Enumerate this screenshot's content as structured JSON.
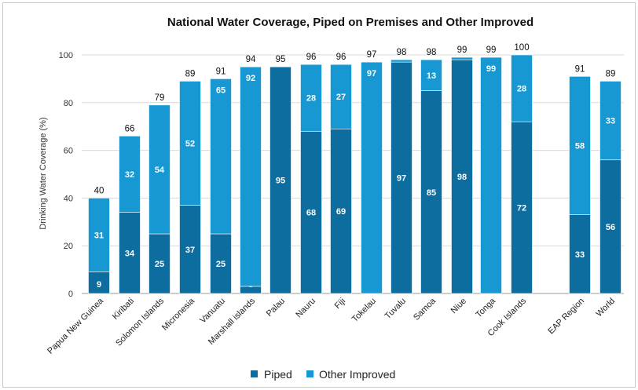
{
  "chart_data": {
    "type": "bar",
    "stacked": true,
    "title": "National Water Coverage, Piped on Premises and Other Improved",
    "ylabel": "Drinking Water Coverage (%)",
    "xlabel": "",
    "ylim": [
      0,
      100
    ],
    "yticks": [
      0,
      20,
      40,
      60,
      80,
      100
    ],
    "grid": true,
    "legend_position": "bottom",
    "categories": [
      "Papua New Guinea",
      "Kiribati",
      "Solomon Islands",
      "Micronesia",
      "Vanuatu",
      "Marshall islands",
      "Palau",
      "Nauru",
      "Fiji",
      "Tokelau",
      "Tuvalu",
      "Samoa",
      "Niue",
      "Tonga",
      "Cook Islands",
      "EAP Region",
      "World"
    ],
    "series": [
      {
        "name": "Piped",
        "color": "#0c6d9e",
        "values": [
          9,
          34,
          25,
          37,
          25,
          3,
          95,
          68,
          69,
          0,
          97,
          85,
          98,
          0,
          72,
          33,
          56
        ],
        "labels": [
          "9",
          "34",
          "25",
          "37",
          "25",
          "3",
          "95",
          "68",
          "69",
          "",
          "97",
          "85",
          "98",
          "",
          "72",
          "33",
          "56"
        ]
      },
      {
        "name": "Other Improved",
        "color": "#1798d2",
        "values": [
          31,
          32,
          54,
          52,
          65,
          92,
          0,
          28,
          27,
          97,
          1,
          13,
          1,
          99,
          28,
          58,
          33
        ],
        "labels": [
          "31",
          "32",
          "54",
          "52",
          "65",
          "92",
          "",
          "28",
          "27",
          "97",
          "",
          "13",
          "",
          "99",
          "28",
          "58",
          "33"
        ]
      }
    ],
    "totals": [
      "40",
      "66",
      "79",
      "89",
      "91",
      "94",
      "95",
      "96",
      "96",
      "97",
      "98",
      "98",
      "99",
      "99",
      "100",
      "91",
      "89"
    ]
  }
}
